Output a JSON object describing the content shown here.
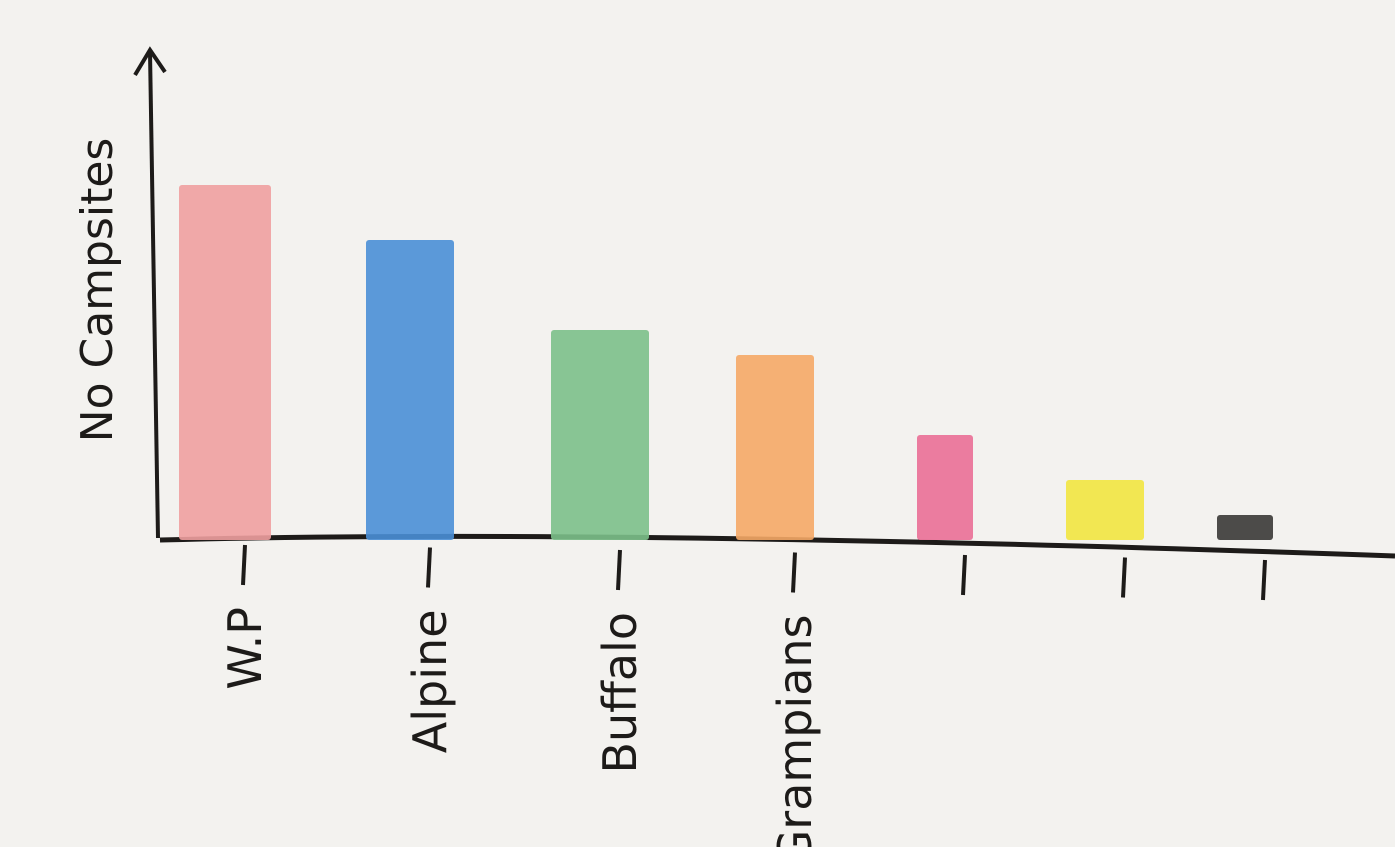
{
  "chart_data": {
    "type": "bar",
    "y_label": "No Campsites",
    "categories": [
      "W.P",
      "Alpine",
      "Buffalo",
      "Grampians",
      null,
      null,
      null
    ],
    "values": [
      355,
      300,
      210,
      185,
      105,
      60,
      25
    ],
    "colors": [
      "#f0a0a0",
      "#4a8fd6",
      "#7cc08a",
      "#f5a866",
      "#ea6f96",
      "#f2e640",
      "#3a3836"
    ],
    "ylim": [
      0,
      400
    ]
  }
}
